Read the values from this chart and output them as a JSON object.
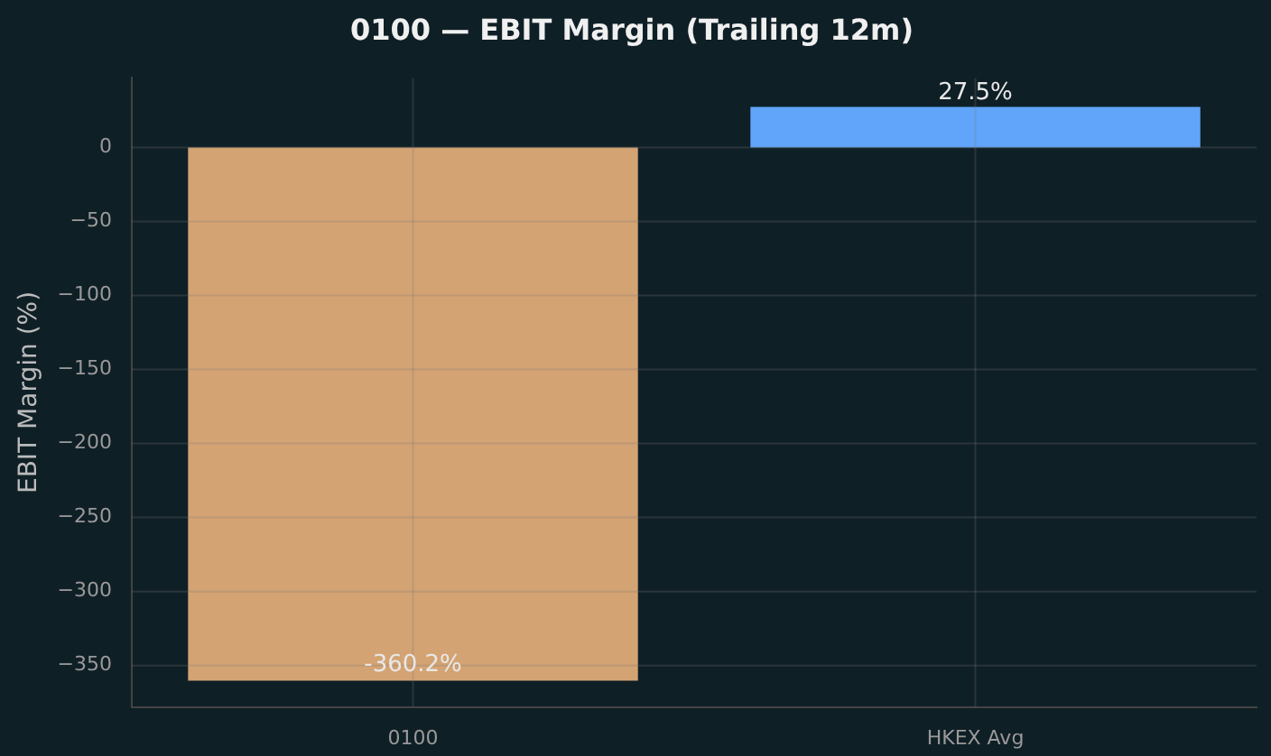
{
  "chart_data": {
    "type": "bar",
    "title": "0100 — EBIT Margin (Trailing 12m)",
    "ylabel": "EBIT Margin (%)",
    "categories": [
      "0100",
      "HKEX Avg"
    ],
    "values": [
      -360.2,
      27.5
    ],
    "colors": [
      "#d4a373",
      "#60a5fa"
    ],
    "value_labels": [
      "-360.2%",
      "27.5%"
    ],
    "ylim": [
      -378,
      47
    ],
    "yticks": [
      0,
      -50,
      -100,
      -150,
      -200,
      -250,
      -300,
      -350
    ],
    "grid": true,
    "legend": false
  }
}
